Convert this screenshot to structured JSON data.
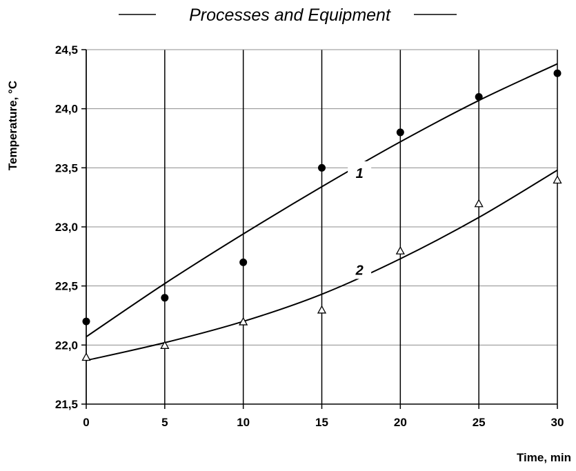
{
  "chart_data": {
    "type": "scatter",
    "title": "Processes and Equipment",
    "xlabel": "Time, min",
    "ylabel": "Temperature, °C",
    "xlim": [
      0,
      30
    ],
    "ylim": [
      21.5,
      24.5
    ],
    "x_ticks": [
      "0",
      "5",
      "10",
      "15",
      "20",
      "25",
      "30"
    ],
    "y_ticks": [
      "21,5",
      "22,0",
      "22,5",
      "23,0",
      "23,5",
      "24,0",
      "24,5"
    ],
    "grid": true,
    "legend": "none",
    "x": [
      0,
      5,
      10,
      15,
      20,
      25,
      30
    ],
    "series": [
      {
        "label": "1",
        "marker": "filled-circle",
        "values": [
          22.2,
          22.4,
          22.7,
          23.5,
          23.8,
          24.1,
          24.3
        ],
        "fit": [
          [
            0,
            22.07
          ],
          [
            5,
            22.52
          ],
          [
            10,
            22.94
          ],
          [
            15,
            23.34
          ],
          [
            20,
            23.72
          ],
          [
            25,
            24.07
          ],
          [
            30,
            24.38
          ]
        ]
      },
      {
        "label": "2",
        "marker": "open-triangle",
        "values": [
          21.9,
          22.0,
          22.2,
          22.3,
          22.8,
          23.2,
          23.4
        ],
        "fit": [
          [
            0,
            21.87
          ],
          [
            5,
            22.02
          ],
          [
            10,
            22.2
          ],
          [
            15,
            22.43
          ],
          [
            20,
            22.73
          ],
          [
            25,
            23.08
          ],
          [
            30,
            23.48
          ]
        ]
      }
    ]
  }
}
